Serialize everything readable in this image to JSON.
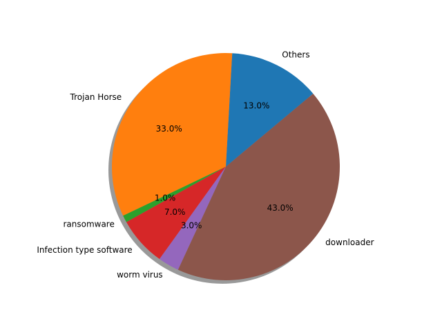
{
  "chart_data": {
    "type": "pie",
    "title": "",
    "shadow": true,
    "start_angle_deg": 40,
    "direction": "counterclockwise",
    "label_format": "{v}%",
    "slices": [
      {
        "label": "Others",
        "value": 13.0,
        "pct_label": "13.0%",
        "color": "#1f77b4"
      },
      {
        "label": "Trojan Horse",
        "value": 33.0,
        "pct_label": "33.0%",
        "color": "#ff7f0e"
      },
      {
        "label": "ransomware",
        "value": 1.0,
        "pct_label": "1.0%",
        "color": "#2ca02c"
      },
      {
        "label": "Infection type software",
        "value": 7.0,
        "pct_label": "7.0%",
        "color": "#d62728"
      },
      {
        "label": "worm virus",
        "value": 3.0,
        "pct_label": "3.0%",
        "color": "#9467bd"
      },
      {
        "label": "downloader",
        "value": 43.0,
        "pct_label": "43.0%",
        "color": "#8c564b"
      }
    ]
  }
}
